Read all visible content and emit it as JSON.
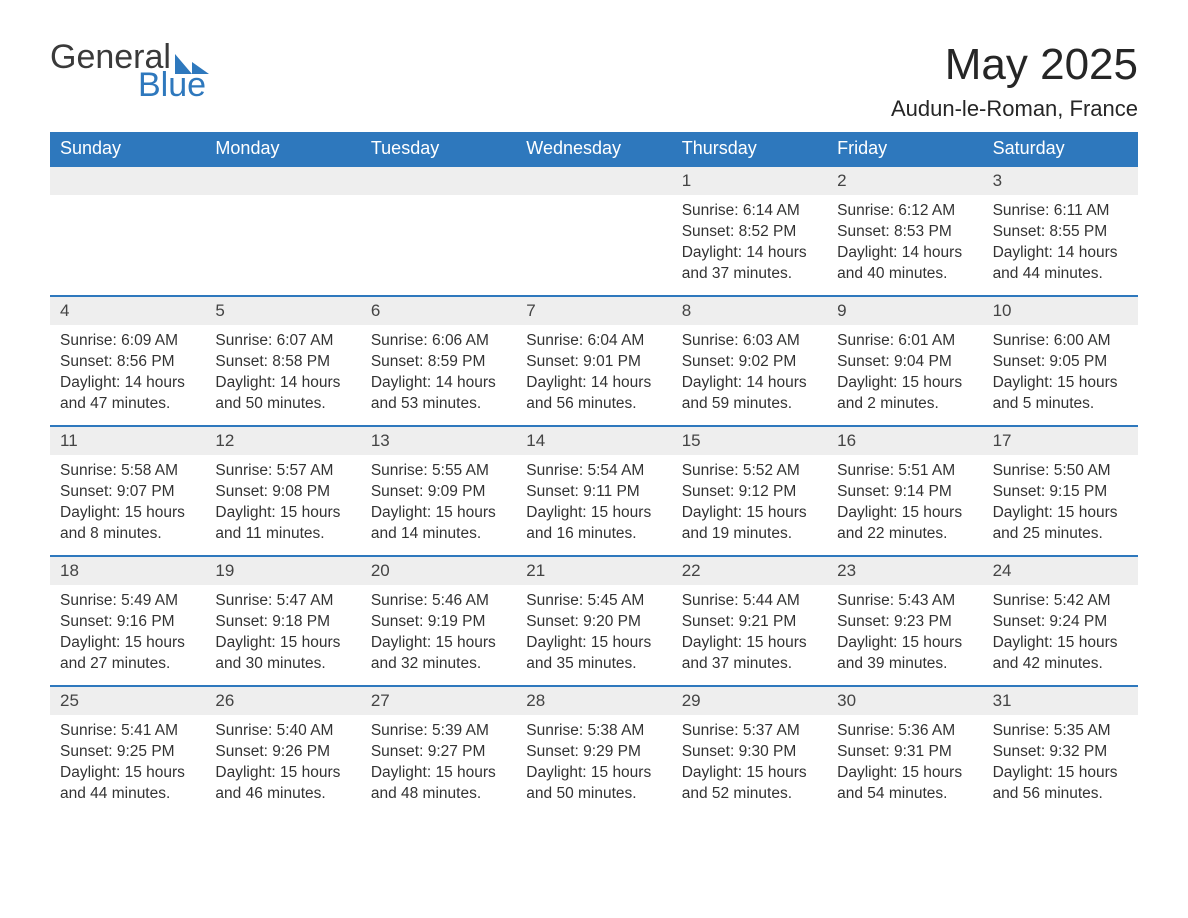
{
  "logo": {
    "word1": "General",
    "word2": "Blue"
  },
  "title": "May 2025",
  "location": "Audun-le-Roman, France",
  "calendar": {
    "weekdays": [
      "Sunday",
      "Monday",
      "Tuesday",
      "Wednesday",
      "Thursday",
      "Friday",
      "Saturday"
    ],
    "header_bg": "#2e78bd",
    "header_text_color": "#ffffff",
    "daynum_bg": "#eeeeee",
    "week_border_color": "#2e78bd",
    "body_text_color": "#333333",
    "font_family": "Arial",
    "weeks": [
      [
        {
          "blank": true
        },
        {
          "blank": true
        },
        {
          "blank": true
        },
        {
          "blank": true
        },
        {
          "num": "1",
          "sunrise": "Sunrise: 6:14 AM",
          "sunset": "Sunset: 8:52 PM",
          "daylight": "Daylight: 14 hours and 37 minutes."
        },
        {
          "num": "2",
          "sunrise": "Sunrise: 6:12 AM",
          "sunset": "Sunset: 8:53 PM",
          "daylight": "Daylight: 14 hours and 40 minutes."
        },
        {
          "num": "3",
          "sunrise": "Sunrise: 6:11 AM",
          "sunset": "Sunset: 8:55 PM",
          "daylight": "Daylight: 14 hours and 44 minutes."
        }
      ],
      [
        {
          "num": "4",
          "sunrise": "Sunrise: 6:09 AM",
          "sunset": "Sunset: 8:56 PM",
          "daylight": "Daylight: 14 hours and 47 minutes."
        },
        {
          "num": "5",
          "sunrise": "Sunrise: 6:07 AM",
          "sunset": "Sunset: 8:58 PM",
          "daylight": "Daylight: 14 hours and 50 minutes."
        },
        {
          "num": "6",
          "sunrise": "Sunrise: 6:06 AM",
          "sunset": "Sunset: 8:59 PM",
          "daylight": "Daylight: 14 hours and 53 minutes."
        },
        {
          "num": "7",
          "sunrise": "Sunrise: 6:04 AM",
          "sunset": "Sunset: 9:01 PM",
          "daylight": "Daylight: 14 hours and 56 minutes."
        },
        {
          "num": "8",
          "sunrise": "Sunrise: 6:03 AM",
          "sunset": "Sunset: 9:02 PM",
          "daylight": "Daylight: 14 hours and 59 minutes."
        },
        {
          "num": "9",
          "sunrise": "Sunrise: 6:01 AM",
          "sunset": "Sunset: 9:04 PM",
          "daylight": "Daylight: 15 hours and 2 minutes."
        },
        {
          "num": "10",
          "sunrise": "Sunrise: 6:00 AM",
          "sunset": "Sunset: 9:05 PM",
          "daylight": "Daylight: 15 hours and 5 minutes."
        }
      ],
      [
        {
          "num": "11",
          "sunrise": "Sunrise: 5:58 AM",
          "sunset": "Sunset: 9:07 PM",
          "daylight": "Daylight: 15 hours and 8 minutes."
        },
        {
          "num": "12",
          "sunrise": "Sunrise: 5:57 AM",
          "sunset": "Sunset: 9:08 PM",
          "daylight": "Daylight: 15 hours and 11 minutes."
        },
        {
          "num": "13",
          "sunrise": "Sunrise: 5:55 AM",
          "sunset": "Sunset: 9:09 PM",
          "daylight": "Daylight: 15 hours and 14 minutes."
        },
        {
          "num": "14",
          "sunrise": "Sunrise: 5:54 AM",
          "sunset": "Sunset: 9:11 PM",
          "daylight": "Daylight: 15 hours and 16 minutes."
        },
        {
          "num": "15",
          "sunrise": "Sunrise: 5:52 AM",
          "sunset": "Sunset: 9:12 PM",
          "daylight": "Daylight: 15 hours and 19 minutes."
        },
        {
          "num": "16",
          "sunrise": "Sunrise: 5:51 AM",
          "sunset": "Sunset: 9:14 PM",
          "daylight": "Daylight: 15 hours and 22 minutes."
        },
        {
          "num": "17",
          "sunrise": "Sunrise: 5:50 AM",
          "sunset": "Sunset: 9:15 PM",
          "daylight": "Daylight: 15 hours and 25 minutes."
        }
      ],
      [
        {
          "num": "18",
          "sunrise": "Sunrise: 5:49 AM",
          "sunset": "Sunset: 9:16 PM",
          "daylight": "Daylight: 15 hours and 27 minutes."
        },
        {
          "num": "19",
          "sunrise": "Sunrise: 5:47 AM",
          "sunset": "Sunset: 9:18 PM",
          "daylight": "Daylight: 15 hours and 30 minutes."
        },
        {
          "num": "20",
          "sunrise": "Sunrise: 5:46 AM",
          "sunset": "Sunset: 9:19 PM",
          "daylight": "Daylight: 15 hours and 32 minutes."
        },
        {
          "num": "21",
          "sunrise": "Sunrise: 5:45 AM",
          "sunset": "Sunset: 9:20 PM",
          "daylight": "Daylight: 15 hours and 35 minutes."
        },
        {
          "num": "22",
          "sunrise": "Sunrise: 5:44 AM",
          "sunset": "Sunset: 9:21 PM",
          "daylight": "Daylight: 15 hours and 37 minutes."
        },
        {
          "num": "23",
          "sunrise": "Sunrise: 5:43 AM",
          "sunset": "Sunset: 9:23 PM",
          "daylight": "Daylight: 15 hours and 39 minutes."
        },
        {
          "num": "24",
          "sunrise": "Sunrise: 5:42 AM",
          "sunset": "Sunset: 9:24 PM",
          "daylight": "Daylight: 15 hours and 42 minutes."
        }
      ],
      [
        {
          "num": "25",
          "sunrise": "Sunrise: 5:41 AM",
          "sunset": "Sunset: 9:25 PM",
          "daylight": "Daylight: 15 hours and 44 minutes."
        },
        {
          "num": "26",
          "sunrise": "Sunrise: 5:40 AM",
          "sunset": "Sunset: 9:26 PM",
          "daylight": "Daylight: 15 hours and 46 minutes."
        },
        {
          "num": "27",
          "sunrise": "Sunrise: 5:39 AM",
          "sunset": "Sunset: 9:27 PM",
          "daylight": "Daylight: 15 hours and 48 minutes."
        },
        {
          "num": "28",
          "sunrise": "Sunrise: 5:38 AM",
          "sunset": "Sunset: 9:29 PM",
          "daylight": "Daylight: 15 hours and 50 minutes."
        },
        {
          "num": "29",
          "sunrise": "Sunrise: 5:37 AM",
          "sunset": "Sunset: 9:30 PM",
          "daylight": "Daylight: 15 hours and 52 minutes."
        },
        {
          "num": "30",
          "sunrise": "Sunrise: 5:36 AM",
          "sunset": "Sunset: 9:31 PM",
          "daylight": "Daylight: 15 hours and 54 minutes."
        },
        {
          "num": "31",
          "sunrise": "Sunrise: 5:35 AM",
          "sunset": "Sunset: 9:32 PM",
          "daylight": "Daylight: 15 hours and 56 minutes."
        }
      ]
    ]
  }
}
